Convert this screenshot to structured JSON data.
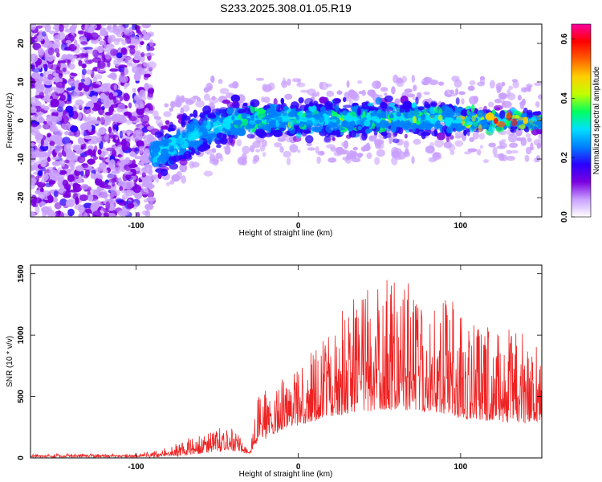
{
  "title": "S233.2025.308.01.05.R19",
  "chart_data": [
    {
      "type": "heatmap",
      "xlabel": "Height of straight line (km)",
      "ylabel": "Frequency (Hz)",
      "xlim": [
        -165,
        150
      ],
      "ylim": [
        -25,
        25
      ],
      "x_ticks": [
        -100,
        0,
        100
      ],
      "y_ticks": [
        -20,
        -10,
        0,
        10,
        20
      ],
      "colorbar": {
        "label": "Normalized spectral amplitude",
        "range": [
          0,
          0.65
        ],
        "ticks": [
          0.0,
          0.2,
          0.4,
          0.6
        ],
        "colors": [
          "#ffffff",
          "#c9a0ff",
          "#7a00e0",
          "#2a00ff",
          "#0080ff",
          "#00e0ff",
          "#00ff60",
          "#c0ff00",
          "#ffd000",
          "#ff6000",
          "#ff0000",
          "#ff00a0"
        ]
      },
      "description_regions": [
        {
          "x_range": [
            -165,
            -90
          ],
          "freq_range": [
            -25,
            25
          ],
          "amplitude": 0.1
        },
        {
          "x_range": [
            -90,
            -55
          ],
          "freq_center": -7,
          "freq_halfwidth": 6,
          "amplitude": 0.2
        },
        {
          "x_range": [
            -55,
            150
          ],
          "freq_center": 0,
          "freq_halfwidth": 5,
          "amplitude": 0.25
        },
        {
          "x_range": [
            100,
            150
          ],
          "freq_center": 0,
          "freq_halfwidth": 2,
          "amplitude": 0.6
        }
      ]
    },
    {
      "type": "line",
      "xlabel": "Height of straight line (km)",
      "ylabel": "SNR (10 * v/v)",
      "xlim": [
        -165,
        150
      ],
      "ylim": [
        0,
        1570
      ],
      "x_ticks": [
        -100,
        0,
        100
      ],
      "y_ticks": [
        0,
        500,
        1000,
        1500
      ],
      "color": "#ee2222",
      "envelope": {
        "x": [
          -165,
          -100,
          -85,
          -70,
          -55,
          -45,
          -38,
          -30,
          -25,
          -15,
          0,
          15,
          30,
          45,
          60,
          75,
          90,
          105,
          120,
          135,
          150
        ],
        "baseline": [
          10,
          10,
          15,
          25,
          40,
          60,
          60,
          40,
          120,
          200,
          270,
          320,
          360,
          380,
          400,
          380,
          360,
          320,
          300,
          280,
          300
        ],
        "peak": [
          25,
          30,
          60,
          150,
          200,
          270,
          230,
          30,
          500,
          600,
          750,
          1000,
          1250,
          1400,
          1500,
          1350,
          1300,
          1200,
          1100,
          1050,
          950
        ]
      }
    }
  ]
}
